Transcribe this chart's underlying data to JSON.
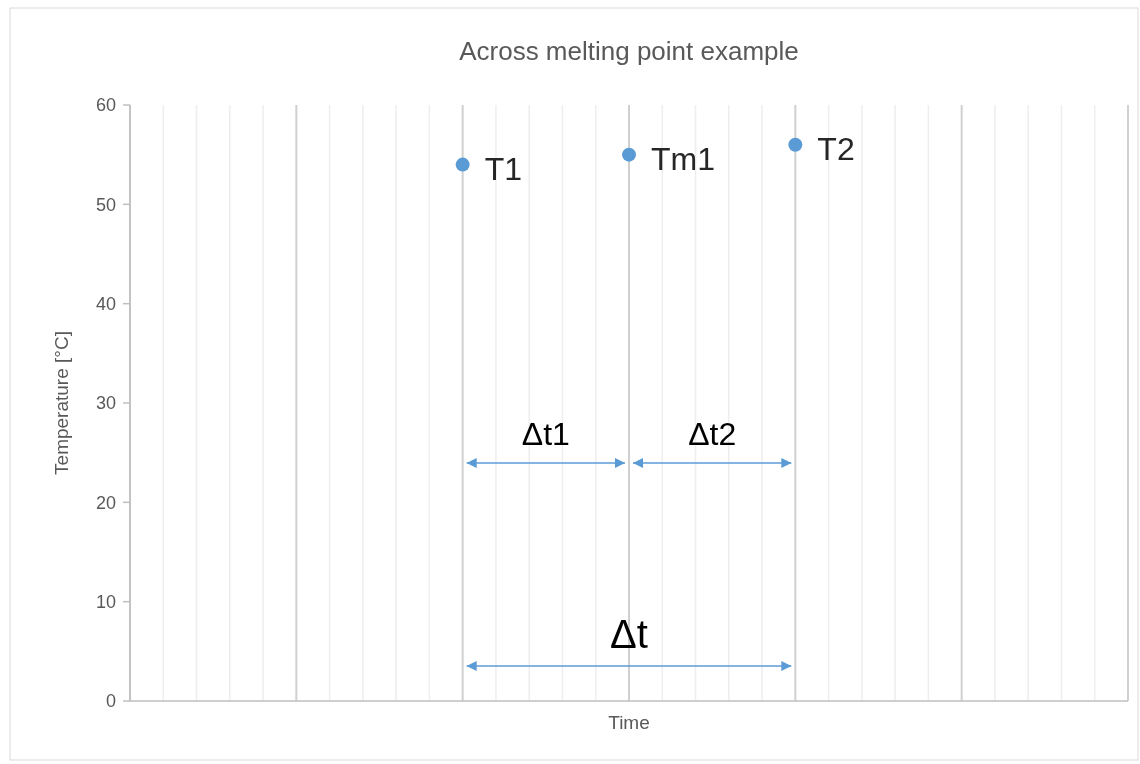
{
  "chart_data": {
    "type": "scatter",
    "title": "Across melting point example",
    "xlabel": "Time",
    "ylabel": "Temperature [°C]",
    "categories": [
      null,
      null,
      null,
      null,
      null,
      null,
      null,
      null,
      null,
      null,
      null,
      null,
      null,
      null,
      null,
      null,
      null,
      null,
      null,
      null,
      null,
      null,
      null,
      null,
      null,
      null,
      null,
      null,
      null,
      null,
      null
    ],
    "values": [
      null,
      null,
      null,
      null,
      null,
      null,
      null,
      null,
      null,
      null,
      54,
      null,
      null,
      null,
      null,
      55,
      null,
      null,
      null,
      null,
      56,
      null,
      null,
      null,
      null,
      null,
      null,
      null,
      null,
      null,
      null
    ],
    "color": "#5b9bd5",
    "marker": "circle",
    "ylim": [
      0,
      60
    ],
    "yticks": [
      0,
      10,
      20,
      30,
      40,
      50,
      60
    ],
    "grid": "x",
    "tick_labels": "y",
    "annotations": [
      "T1",
      "Tm1",
      "T2",
      "Δt1",
      "Δt2",
      "Δt"
    ]
  }
}
